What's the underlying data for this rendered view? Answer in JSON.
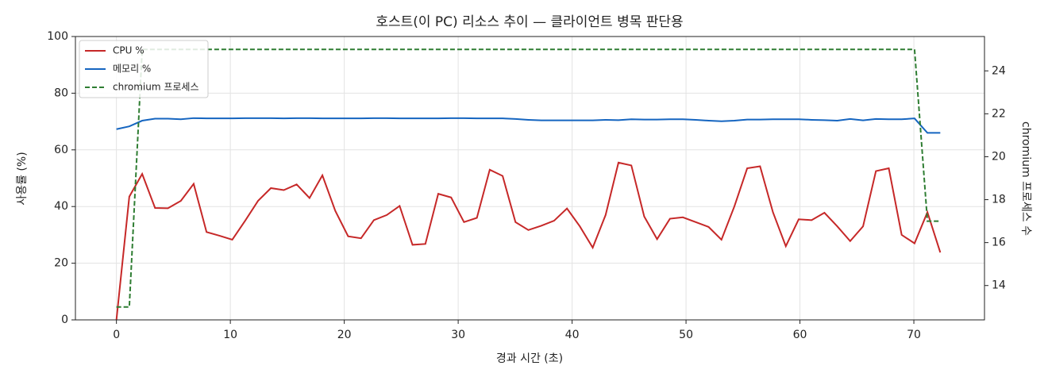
{
  "chart_data": {
    "type": "line",
    "title": "호스트(이 PC) 리소스 추이 — 클라이언트 병목 판단용",
    "x_label": "경과 시간 (초)",
    "y_label": "사용률 (%)",
    "y2_label": "chromium 프로세스 수",
    "x": [
      0,
      1.13,
      2.26,
      3.39,
      4.52,
      5.65,
      6.78,
      7.91,
      9.04,
      10.17,
      11.3,
      12.43,
      13.56,
      14.69,
      15.82,
      16.95,
      18.08,
      19.21,
      20.34,
      21.47,
      22.6,
      23.73,
      24.86,
      25.99,
      27.12,
      28.25,
      29.38,
      30.51,
      31.64,
      32.77,
      33.9,
      35.03,
      36.16,
      37.29,
      38.42,
      39.55,
      40.68,
      41.81,
      42.94,
      44.07,
      45.2,
      46.33,
      47.46,
      48.59,
      49.72,
      50.85,
      51.98,
      53.11,
      54.24,
      55.37,
      56.5,
      57.63,
      58.76,
      59.89,
      61.02,
      62.15,
      63.28,
      64.41,
      65.54,
      66.67,
      67.8,
      68.93,
      70.06,
      71.19,
      72.32
    ],
    "series": [
      {
        "name": "CPU %",
        "color": "#c62828",
        "dash": false,
        "values": [
          0,
          43.5,
          51.5,
          39.5,
          39.4,
          42,
          48,
          31,
          29.7,
          28.3,
          35,
          42,
          46.5,
          45.8,
          47.8,
          43,
          51,
          38.5,
          29.5,
          28.8,
          35.2,
          37,
          40.2,
          26.5,
          26.8,
          44.5,
          43.2,
          34.5,
          36,
          53,
          50.8,
          34.5,
          31.7,
          33.2,
          35,
          39.3,
          33,
          25.5,
          37,
          55.5,
          54.5,
          36.5,
          28.5,
          35.7,
          36.2,
          34.5,
          32.8,
          28.3,
          40,
          53.5,
          54.2,
          38,
          26,
          35.5,
          35.2,
          37.8,
          33,
          27.8,
          33,
          52.5,
          53.5,
          30,
          27,
          38,
          23.8
        ]
      },
      {
        "name": "메모리 %",
        "color": "#1565c0",
        "dash": false,
        "values": [
          67.3,
          68.3,
          70.3,
          71,
          71,
          70.8,
          71.2,
          71.1,
          71.1,
          71.1,
          71.2,
          71.2,
          71.2,
          71.1,
          71.2,
          71.2,
          71.1,
          71.1,
          71.1,
          71.1,
          71.2,
          71.2,
          71.1,
          71.1,
          71.1,
          71.1,
          71.2,
          71.2,
          71.1,
          71.1,
          71.1,
          70.9,
          70.6,
          70.4,
          70.4,
          70.4,
          70.4,
          70.4,
          70.6,
          70.5,
          70.8,
          70.7,
          70.7,
          70.8,
          70.8,
          70.6,
          70.3,
          70.1,
          70.3,
          70.7,
          70.7,
          70.8,
          70.8,
          70.8,
          70.6,
          70.5,
          70.3,
          70.9,
          70.4,
          70.9,
          70.8,
          70.8,
          71.1,
          66,
          66
        ]
      },
      {
        "name": "chromium 프로세스",
        "color": "#2e7d32",
        "dash": true,
        "axis": "y2",
        "values": [
          13,
          13,
          25,
          25,
          25,
          25,
          25,
          25,
          25,
          25,
          25,
          25,
          25,
          25,
          25,
          25,
          25,
          25,
          25,
          25,
          25,
          25,
          25,
          25,
          25,
          25,
          25,
          25,
          25,
          25,
          25,
          25,
          25,
          25,
          25,
          25,
          25,
          25,
          25,
          25,
          25,
          25,
          25,
          25,
          25,
          25,
          25,
          25,
          25,
          25,
          25,
          25,
          25,
          25,
          25,
          25,
          25,
          25,
          25,
          25,
          25,
          25,
          25,
          17,
          17
        ]
      }
    ],
    "xlim": [
      -3.6,
      76.2
    ],
    "xticks": [
      0,
      10,
      20,
      30,
      40,
      50,
      60,
      70
    ],
    "ylim": [
      0,
      100
    ],
    "yticks": [
      0,
      20,
      40,
      60,
      80,
      100
    ],
    "y2lim": [
      12.4,
      25.6
    ],
    "y2ticks": [
      14,
      16,
      18,
      20,
      22,
      24
    ],
    "grid": true,
    "legend": "upper left"
  }
}
